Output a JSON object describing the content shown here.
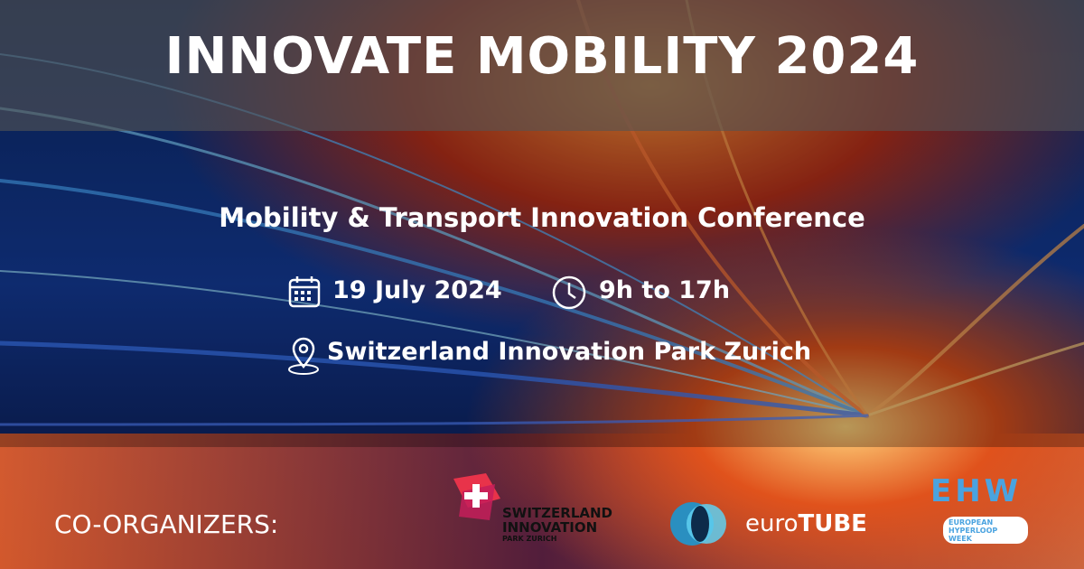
{
  "header": {
    "title": "INNOVATE MOBILITY 2024"
  },
  "event": {
    "subtitle": "Mobility & Transport Innovation Conference",
    "date": "19 July 2024",
    "time": "9h to 17h",
    "location": "Switzerland Innovation Park Zurich"
  },
  "footer": {
    "label": "CO-ORGANIZERS:",
    "organizers": [
      {
        "lines": [
          "SWITZERLAND",
          "INNOVATION",
          "PARK ZURICH"
        ]
      },
      {
        "lines": [
          "euro",
          "TUBE"
        ]
      },
      {
        "lines": [
          "EHW",
          "EUROPEAN",
          "HYPERLOOP",
          "WEEK"
        ]
      }
    ]
  }
}
